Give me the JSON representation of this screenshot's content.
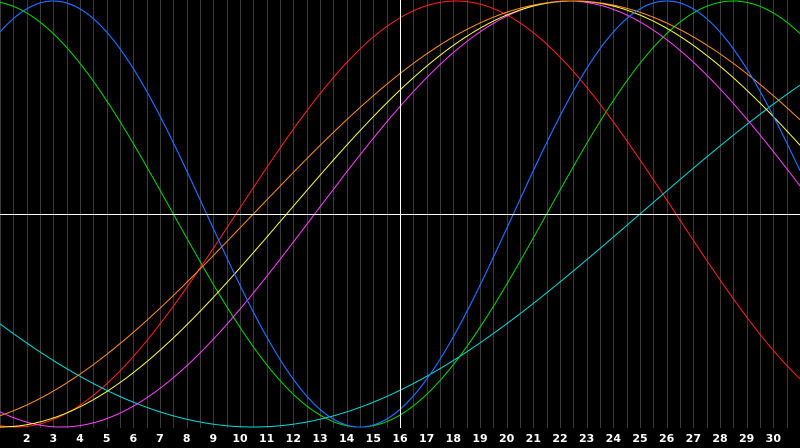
{
  "chart_data": {
    "type": "line",
    "x_ticks": [
      "2",
      "3",
      "4",
      "5",
      "6",
      "7",
      "8",
      "9",
      "10",
      "11",
      "12",
      "13",
      "14",
      "15",
      "16",
      "17",
      "18",
      "19",
      "20",
      "21",
      "22",
      "23",
      "24",
      "25",
      "26",
      "27",
      "28",
      "29",
      "30"
    ],
    "x_range": [
      1,
      31
    ],
    "y_range": [
      -1,
      1
    ],
    "grid": true,
    "crosshair": {
      "x": 16,
      "y": 0
    },
    "colors": {
      "background": "#000000",
      "grid": "#3a3a3a",
      "axis": "#ffffff",
      "ticks": "#ffffff"
    },
    "series": [
      {
        "color": "#1f6fff",
        "period": 23,
        "peak_day": 3.0
      },
      {
        "color": "#00dd00",
        "period": 28,
        "peak_day": 28.5
      },
      {
        "color": "#ff2020",
        "period": 33,
        "peak_day": 18.1
      },
      {
        "color": "#00dddd",
        "period": 58,
        "peak_day": 39.5
      },
      {
        "color": "#ff40ff",
        "period": 38,
        "peak_day": 22.3
      },
      {
        "color": "#ffff40",
        "period": 43,
        "peak_day": 22.5
      },
      {
        "color": "#ff9020",
        "period": 48,
        "peak_day": 22.5
      },
      {
        "color": "#1f6fff",
        "period": 23,
        "peak_day": 26.0
      }
    ]
  }
}
